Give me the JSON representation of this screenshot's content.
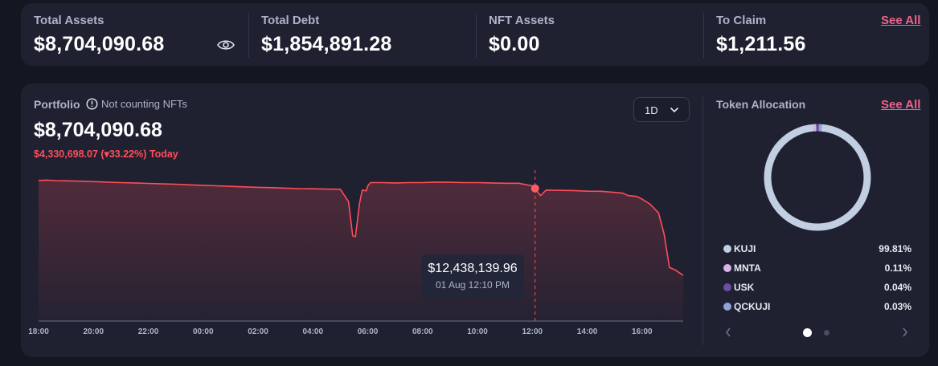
{
  "summary": {
    "total_assets": {
      "label": "Total Assets",
      "value": "$8,704,090.68"
    },
    "total_debt": {
      "label": "Total Debt",
      "value": "$1,854,891.28"
    },
    "nft_assets": {
      "label": "NFT Assets",
      "value": "$0.00"
    },
    "to_claim": {
      "label": "To Claim",
      "value": "$1,211.56",
      "see_all": "See All"
    }
  },
  "portfolio": {
    "label": "Portfolio",
    "nft_note": "Not counting NFTs",
    "value": "$8,704,090.68",
    "change": "$4,330,698.07 (▾33.22%) Today",
    "range": "1D",
    "tooltip": {
      "value": "$12,438,139.96",
      "time": "01 Aug 12:10 PM"
    },
    "x_ticks": [
      "18:00",
      "20:00",
      "22:00",
      "00:00",
      "02:00",
      "04:00",
      "06:00",
      "08:00",
      "10:00",
      "12:00",
      "14:00",
      "16:00"
    ],
    "line_color": "#ff4d5a"
  },
  "chart_data": {
    "type": "line",
    "title": "",
    "xlabel": "",
    "ylabel": "",
    "x_tick_labels": [
      "18:00",
      "20:00",
      "22:00",
      "00:00",
      "02:00",
      "04:00",
      "06:00",
      "08:00",
      "10:00",
      "12:00",
      "14:00",
      "16:00"
    ],
    "x_unit": "hours since 18:00",
    "series": [
      {
        "values_x": [
          0,
          0.3,
          0.6,
          1.0,
          1.5,
          2.0,
          2.5,
          3.0,
          3.5,
          4.0,
          4.5,
          5.0,
          5.5,
          6.0,
          6.5,
          7.0,
          7.5,
          8.0,
          8.5,
          9.0,
          9.5,
          10.0,
          10.5,
          11.0,
          11.3,
          11.45,
          11.55,
          11.7,
          11.8,
          11.95,
          12.0,
          12.1,
          12.5,
          13.0,
          13.5,
          14.0,
          14.5,
          15.0,
          15.5,
          16.0,
          16.5,
          17.0,
          17.5,
          18.0,
          18.1,
          18.3,
          18.5,
          19.0,
          19.5,
          20.0,
          20.5,
          21.0,
          21.3,
          21.5,
          21.8,
          22.0,
          22.3,
          22.6,
          22.8,
          23.0,
          23.2,
          23.5
        ],
        "values_y": [
          8.96,
          8.98,
          8.95,
          8.93,
          8.91,
          8.88,
          8.85,
          8.82,
          8.8,
          8.77,
          8.74,
          8.72,
          8.68,
          8.65,
          8.62,
          8.58,
          8.55,
          8.52,
          8.5,
          8.47,
          8.44,
          8.43,
          8.41,
          8.4,
          7.62,
          5.45,
          5.4,
          7.5,
          8.35,
          8.3,
          8.6,
          8.82,
          8.82,
          8.8,
          8.82,
          8.82,
          8.85,
          8.84,
          8.82,
          8.82,
          8.8,
          8.78,
          8.78,
          8.62,
          8.45,
          8.0,
          8.35,
          8.33,
          8.32,
          8.28,
          8.27,
          8.2,
          8.15,
          8.0,
          7.95,
          7.78,
          7.45,
          6.9,
          5.6,
          3.45,
          3.3,
          2.95
        ]
      }
    ],
    "highlight": {
      "x": 18.1,
      "value": "$12,438,139.96",
      "time": "01 Aug 12:10 PM"
    },
    "grid": false,
    "legend": "none"
  },
  "allocation": {
    "title": "Token Allocation",
    "see_all": "See All",
    "tokens": [
      {
        "name": "KUJI",
        "pct": "99.81%",
        "share": 99.81,
        "color": "#c2cfe3"
      },
      {
        "name": "MNTA",
        "pct": "0.11%",
        "share": 0.11,
        "color": "#d9b4e8"
      },
      {
        "name": "USK",
        "pct": "0.04%",
        "share": 0.04,
        "color": "#6b4fa0"
      },
      {
        "name": "QCKUJI",
        "pct": "0.03%",
        "share": 0.03,
        "color": "#8fa3d9"
      }
    ]
  },
  "icons": {
    "eye": "eye-icon",
    "info": "info-icon",
    "chevron": "chevron-down-icon",
    "prev": "chevron-left-icon",
    "next": "chevron-right-icon"
  }
}
